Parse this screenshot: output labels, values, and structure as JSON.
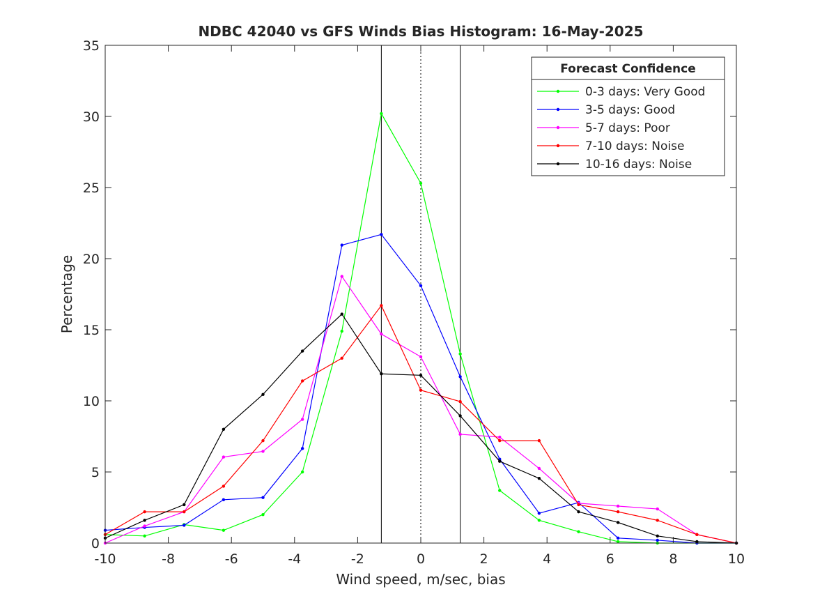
{
  "chart_data": {
    "type": "line",
    "title": "NDBC 42040 vs GFS Winds Bias Histogram: 16-May-2025",
    "xlabel": "Wind speed, m/sec, bias",
    "ylabel": "Percentage",
    "xlim": [
      -10,
      10
    ],
    "ylim": [
      0,
      35
    ],
    "xticks": [
      -10,
      -8,
      -6,
      -4,
      -2,
      0,
      2,
      4,
      6,
      8,
      10
    ],
    "yticks": [
      0,
      5,
      10,
      15,
      20,
      25,
      30,
      35
    ],
    "x": [
      -10,
      -8.75,
      -7.5,
      -6.25,
      -5,
      -3.75,
      -2.5,
      -1.25,
      0,
      1.25,
      2.5,
      3.75,
      5,
      6.25,
      7.5,
      8.75,
      10
    ],
    "vertical_lines": [
      {
        "x": -1.25,
        "style": "solid"
      },
      {
        "x": 0,
        "style": "dotted"
      },
      {
        "x": 1.25,
        "style": "solid"
      }
    ],
    "legend": {
      "title": "Forecast Confidence",
      "position": "top-right"
    },
    "series": [
      {
        "name": "0-3 days: Very Good",
        "color": "#00ff00",
        "values": [
          0.6,
          0.5,
          1.3,
          0.9,
          2.0,
          5.0,
          14.9,
          30.2,
          25.3,
          13.3,
          3.7,
          1.6,
          0.8,
          0.1,
          0.0,
          0.0,
          0.0
        ]
      },
      {
        "name": "3-5 days: Good",
        "color": "#0000ff",
        "values": [
          0.9,
          1.1,
          1.25,
          3.05,
          3.2,
          6.65,
          20.95,
          21.7,
          18.1,
          11.7,
          5.9,
          2.1,
          2.85,
          0.35,
          0.2,
          0.0,
          0.0
        ]
      },
      {
        "name": "5-7 days: Poor",
        "color": "#ff00ff",
        "values": [
          0.0,
          1.2,
          2.2,
          6.05,
          6.45,
          8.7,
          18.75,
          14.7,
          13.1,
          7.65,
          7.45,
          5.25,
          2.8,
          2.6,
          2.4,
          0.6,
          0.0
        ]
      },
      {
        "name": "7-10 days: Noise",
        "color": "#ff0000",
        "values": [
          0.6,
          2.2,
          2.2,
          4.0,
          7.2,
          11.4,
          13.0,
          16.7,
          10.75,
          9.95,
          7.2,
          7.2,
          2.7,
          2.2,
          1.6,
          0.6,
          0.0
        ]
      },
      {
        "name": "10-16 days: Noise",
        "color": "#000000",
        "values": [
          0.35,
          1.6,
          2.7,
          8.0,
          10.45,
          13.5,
          16.1,
          11.9,
          11.8,
          8.95,
          5.75,
          4.55,
          2.2,
          1.45,
          0.5,
          0.1,
          0.0
        ]
      }
    ]
  }
}
